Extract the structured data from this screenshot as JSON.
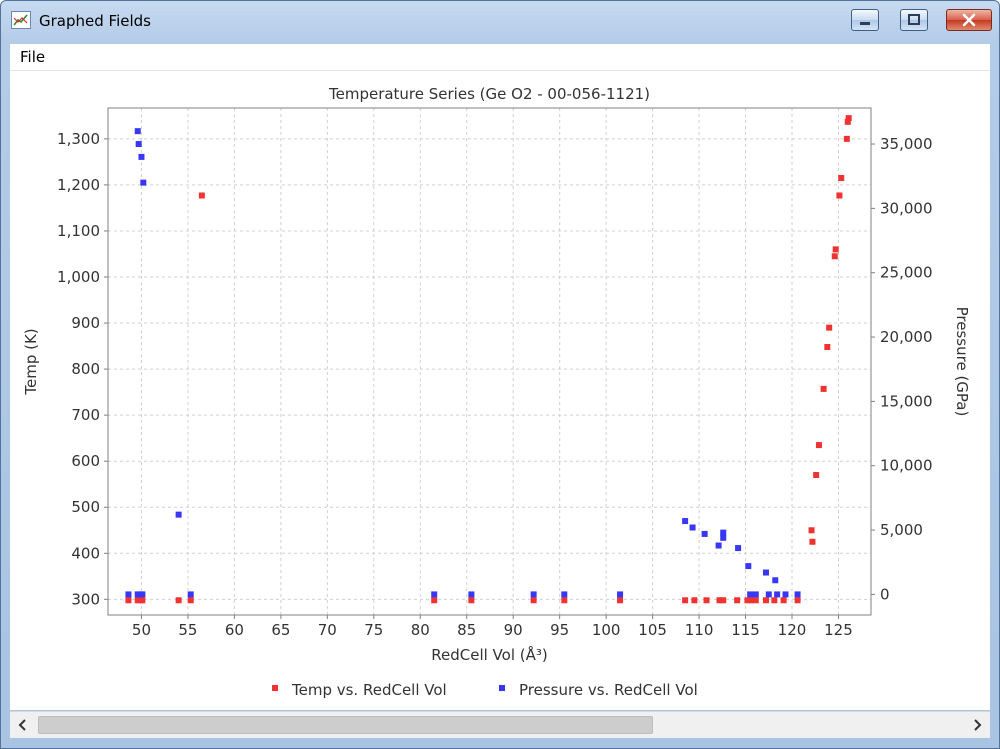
{
  "window": {
    "title": "Graphed Fields",
    "icons": [
      "chart-app-icon",
      "minimize-icon",
      "maximize-icon",
      "close-icon"
    ]
  },
  "menu": {
    "file_label": "File"
  },
  "colors": {
    "temp_series": "#f03232",
    "pressure_series": "#3737f5",
    "grid": "#d0d0d0"
  },
  "chart_data": {
    "type": "scatter",
    "title": "Temperature Series (Ge O2 - 00-056-1121)",
    "xlabel": "RedCell Vol (Å³)",
    "ylabel": "Temp (K)",
    "y2label": "Pressure (GPa)",
    "xlim": [
      46.4,
      128.5
    ],
    "ylim": [
      266,
      1367
    ],
    "y2lim": [
      -1600,
      37800
    ],
    "x_ticks": [
      "50",
      "55",
      "60",
      "65",
      "70",
      "75",
      "80",
      "85",
      "90",
      "95",
      "100",
      "105",
      "110",
      "115",
      "120",
      "125"
    ],
    "y_ticks": [
      "300",
      "400",
      "500",
      "600",
      "700",
      "800",
      "900",
      "1,000",
      "1,100",
      "1,200",
      "1,300"
    ],
    "y2_ticks": [
      "0",
      "5,000",
      "10,000",
      "15,000",
      "20,000",
      "25,000",
      "30,000",
      "35,000"
    ],
    "grid": true,
    "legend_position": "bottom",
    "series": [
      {
        "name": "Temp vs. RedCell Vol",
        "axis": "left",
        "points": [
          [
            48.6,
            298
          ],
          [
            49.6,
            298
          ],
          [
            49.9,
            298
          ],
          [
            50.1,
            298
          ],
          [
            54,
            298
          ],
          [
            55.3,
            298
          ],
          [
            56.5,
            1177
          ],
          [
            81.5,
            298
          ],
          [
            85.5,
            298
          ],
          [
            92.2,
            298
          ],
          [
            95.5,
            298
          ],
          [
            101.5,
            298
          ],
          [
            108.5,
            298
          ],
          [
            109.5,
            298
          ],
          [
            110.8,
            298
          ],
          [
            112.2,
            298
          ],
          [
            112.6,
            298
          ],
          [
            114.1,
            298
          ],
          [
            115.2,
            298
          ],
          [
            115.6,
            298
          ],
          [
            116.1,
            298
          ],
          [
            117.2,
            298
          ],
          [
            118.1,
            298
          ],
          [
            119.1,
            298
          ],
          [
            120.6,
            298
          ],
          [
            122.1,
            450
          ],
          [
            122.2,
            425
          ],
          [
            122.6,
            570
          ],
          [
            122.9,
            635
          ],
          [
            123.4,
            757
          ],
          [
            123.8,
            848
          ],
          [
            124,
            890
          ],
          [
            124.6,
            1045
          ],
          [
            124.7,
            1060
          ],
          [
            125.1,
            1177
          ],
          [
            125.3,
            1215
          ],
          [
            125.9,
            1300
          ],
          [
            126,
            1337
          ],
          [
            126.1,
            1345
          ]
        ]
      },
      {
        "name": "Pressure vs. RedCell Vol",
        "axis": "right",
        "points": [
          [
            48.6,
            0
          ],
          [
            49.6,
            0
          ],
          [
            49.9,
            0
          ],
          [
            50.1,
            0
          ],
          [
            49.6,
            36000
          ],
          [
            49.7,
            35000
          ],
          [
            50,
            34000
          ],
          [
            50.2,
            32000
          ],
          [
            54,
            6200
          ],
          [
            55.3,
            0
          ],
          [
            81.5,
            0
          ],
          [
            85.5,
            0
          ],
          [
            92.2,
            0
          ],
          [
            95.5,
            0
          ],
          [
            101.5,
            0
          ],
          [
            108.5,
            5700
          ],
          [
            109.3,
            5200
          ],
          [
            110.6,
            4700
          ],
          [
            112.1,
            3800
          ],
          [
            112.6,
            4800
          ],
          [
            112.6,
            4400
          ],
          [
            114.2,
            3600
          ],
          [
            115.3,
            2200
          ],
          [
            115.5,
            0
          ],
          [
            116.1,
            0
          ],
          [
            117.2,
            1700
          ],
          [
            117.5,
            0
          ],
          [
            118.2,
            1100
          ],
          [
            118.4,
            0
          ],
          [
            119.3,
            0
          ],
          [
            120.6,
            0
          ]
        ]
      }
    ]
  }
}
